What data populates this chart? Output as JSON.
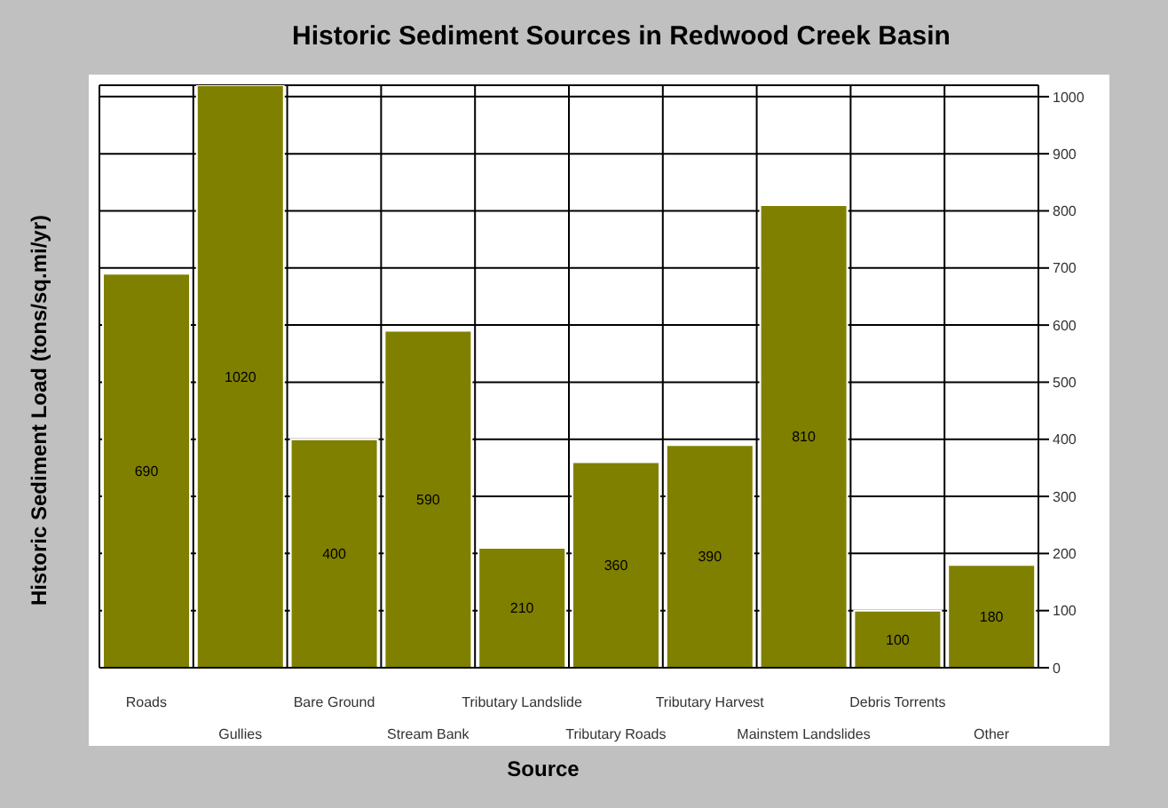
{
  "chart_data": {
    "type": "bar",
    "title": "Historic Sediment Sources in Redwood Creek Basin",
    "xlabel": "Source",
    "ylabel": "Historic Sediment Load (tons/sq.mi/yr)",
    "categories": [
      "Roads",
      "Gullies",
      "Bare Ground",
      "Stream Bank",
      "Tributary Landslide",
      "Tributary Roads",
      "Tributary Harvest",
      "Mainstem Landslides",
      "Debris Torrents",
      "Other"
    ],
    "values": [
      690,
      1020,
      400,
      590,
      210,
      360,
      390,
      810,
      100,
      180
    ],
    "color": "#808000",
    "ylim": [
      0,
      1020
    ],
    "yticks": [
      0,
      100,
      200,
      300,
      400,
      500,
      600,
      700,
      800,
      900,
      1000
    ],
    "grid": true,
    "data_labels": true
  }
}
